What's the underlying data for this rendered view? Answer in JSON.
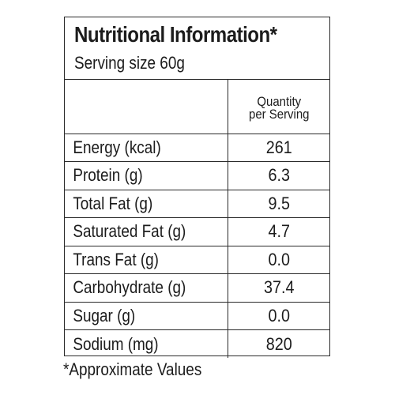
{
  "label": {
    "title": "Nutritional Information*",
    "serving_size": "Serving size 60g",
    "column_header": "Quantity\nper Serving",
    "rows": [
      {
        "nutrient": "Energy (kcal)",
        "quantity": "261"
      },
      {
        "nutrient": "Protein (g)",
        "quantity": "6.3"
      },
      {
        "nutrient": "Total Fat (g)",
        "quantity": "9.5"
      },
      {
        "nutrient": "Saturated Fat (g)",
        "quantity": "4.7"
      },
      {
        "nutrient": "Trans Fat (g)",
        "quantity": "0.0"
      },
      {
        "nutrient": "Carbohydrate (g)",
        "quantity": "37.4"
      },
      {
        "nutrient": "Sugar (g)",
        "quantity": "0.0"
      },
      {
        "nutrient": "Sodium (mg)",
        "quantity": "820"
      }
    ],
    "footnote": "*Approximate Values"
  }
}
